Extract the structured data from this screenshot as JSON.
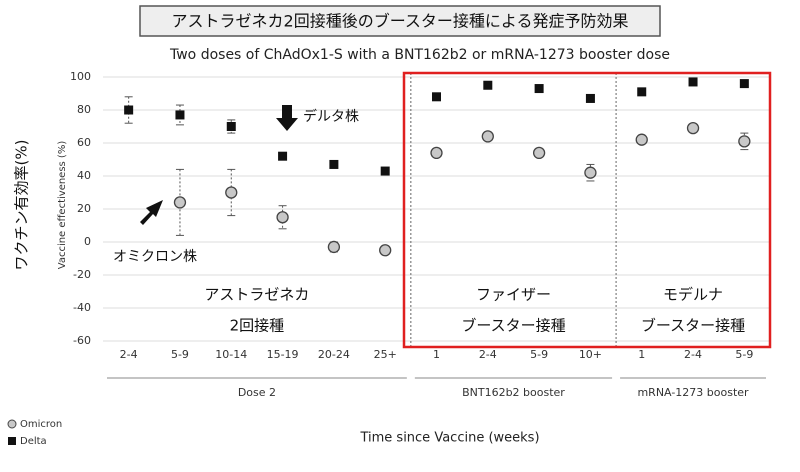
{
  "chart_data": {
    "type": "dot",
    "title": "アストラゼネカ2回接種後のブースター接種による発症予防効果",
    "subtitle": "Two doses of ChAdOx1-S with a BNT162b2 or mRNA-1273 booster dose",
    "ylabel": "ワクチン有効率(%)",
    "ylabel_secondary": "Vaccine effectiveness (%)",
    "xlabel": "Time since Vaccine (weeks)",
    "groups": [
      {
        "name": "Dose 2",
        "label": [
          "アストラゼネカ",
          "2回接種"
        ],
        "categories": [
          "2-4",
          "5-9",
          "10-14",
          "15-19",
          "20-24",
          "25+"
        ]
      },
      {
        "name": "BNT162b2 booster",
        "label": [
          "ファイザー",
          "ブースター接種"
        ],
        "categories": [
          "1",
          "2-4",
          "5-9",
          "10+"
        ]
      },
      {
        "name": "mRNA-1273 booster",
        "label": [
          "モデルナ",
          "ブースター接種"
        ],
        "categories": [
          "1",
          "2-4",
          "5-9"
        ]
      }
    ],
    "series": [
      {
        "name": "Omicron",
        "color": "#c8c8c8",
        "marker": "circle",
        "values": [
          null,
          24,
          30,
          15,
          -3,
          -5,
          54,
          64,
          54,
          42,
          62,
          69,
          61
        ],
        "errors": [
          null,
          20,
          14,
          7,
          3,
          2,
          2,
          null,
          null,
          5,
          null,
          null,
          5
        ]
      },
      {
        "name": "Delta",
        "color": "#111111",
        "marker": "square",
        "values": [
          80,
          77,
          70,
          52,
          47,
          43,
          88,
          95,
          93,
          87,
          91,
          97,
          96
        ],
        "errors": [
          8,
          6,
          4,
          null,
          null,
          null,
          null,
          null,
          null,
          null,
          null,
          null,
          null
        ]
      }
    ],
    "annotations": [
      {
        "text": "デルタ株"
      },
      {
        "text": "オミクロン株"
      }
    ],
    "ylim": [
      -60,
      100
    ],
    "yticks": [
      -60,
      -40,
      -20,
      0,
      20,
      40,
      60,
      80,
      100
    ],
    "grid": true
  }
}
